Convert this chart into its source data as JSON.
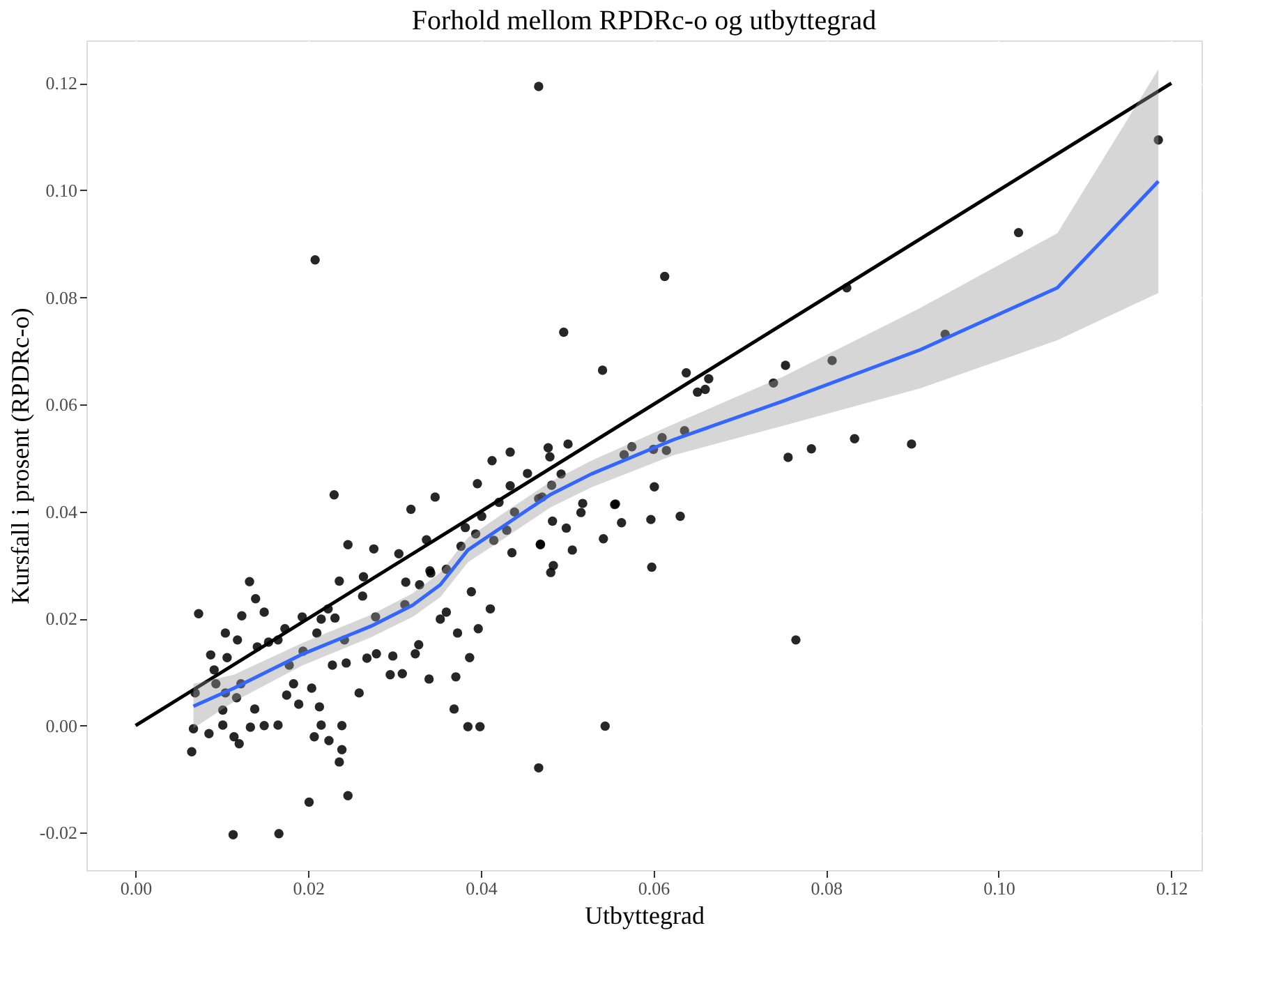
{
  "chart_data": {
    "type": "scatter",
    "title": "Forhold mellom RPDRc-o og utbyttegrad",
    "xlabel": "Utbyttegrad",
    "ylabel": "Kursfall i prosent (RPDRc-o)",
    "xlim": [
      -0.0057,
      0.1235
    ],
    "ylim": [
      -0.027,
      0.128
    ],
    "xticks": [
      {
        "value": 0,
        "label": "0.00"
      },
      {
        "value": 0.02,
        "label": "0.02"
      },
      {
        "value": 0.04,
        "label": "0.04"
      },
      {
        "value": 0.06,
        "label": "0.06"
      },
      {
        "value": 0.08,
        "label": "0.08"
      },
      {
        "value": 0.1,
        "label": "0.10"
      },
      {
        "value": 0.12,
        "label": "0.12"
      }
    ],
    "yticks": [
      {
        "value": -0.02,
        "label": "-0.02"
      },
      {
        "value": 0,
        "label": "0.00"
      },
      {
        "value": 0.02,
        "label": "0.02"
      },
      {
        "value": 0.04,
        "label": "0.04"
      },
      {
        "value": 0.06,
        "label": "0.06"
      },
      {
        "value": 0.08,
        "label": "0.08"
      },
      {
        "value": 0.1,
        "label": "0.10"
      },
      {
        "value": 0.12,
        "label": "0.12"
      }
    ],
    "grid": true,
    "series": [
      {
        "marker": "circle",
        "color": "#000000",
        "x": [
          0.1185,
          0.1023,
          0.0938,
          0.0824,
          0.0807,
          0.0753,
          0.0739,
          0.0613,
          0.0496,
          0.0541,
          0.0638,
          0.0664,
          0.0651,
          0.066,
          0.0636,
          0.061,
          0.06,
          0.0615,
          0.0575,
          0.0566,
          0.0756,
          0.0783,
          0.0833,
          0.0899,
          0.0601,
          0.0555,
          0.0518,
          0.0516,
          0.0563,
          0.0597,
          0.0631,
          0.0542,
          0.0506,
          0.0598,
          0.0484,
          0.0481,
          0.0499,
          0.0469,
          0.0483,
          0.0482,
          0.0493,
          0.0501,
          0.0478,
          0.048,
          0.0471,
          0.0765,
          0.0544,
          0.0467,
          0.0467,
          0.023,
          0.0319,
          0.0347,
          0.0413,
          0.0434,
          0.0396,
          0.0434,
          0.0454,
          0.0246,
          0.0276,
          0.0305,
          0.0337,
          0.0382,
          0.0377,
          0.0394,
          0.0401,
          0.0421,
          0.0439,
          0.0467,
          0.0469,
          0.043,
          0.0415,
          0.0436,
          0.0556,
          0.0236,
          0.0264,
          0.0313,
          0.0341,
          0.036,
          0.0132,
          0.0139,
          0.0149,
          0.0073,
          0.0123,
          0.0104,
          0.0118,
          0.0087,
          0.0106,
          0.0091,
          0.0193,
          0.0263,
          0.0278,
          0.0165,
          0.0194,
          0.0223,
          0.0215,
          0.0231,
          0.0173,
          0.021,
          0.0154,
          0.0141,
          0.0242,
          0.0178,
          0.0228,
          0.0183,
          0.0204,
          0.0268,
          0.0279,
          0.0244,
          0.0298,
          0.0312,
          0.0329,
          0.0342,
          0.036,
          0.0353,
          0.0328,
          0.0324,
          0.0295,
          0.0309,
          0.034,
          0.0371,
          0.0387,
          0.0373,
          0.0397,
          0.0411,
          0.0389,
          0.0369,
          0.0385,
          0.0399,
          0.0259,
          0.0175,
          0.0189,
          0.0213,
          0.0215,
          0.0239,
          0.0207,
          0.0224,
          0.0239,
          0.0236,
          0.0246,
          0.0201,
          0.0113,
          0.0166,
          0.0065,
          0.0067,
          0.0085,
          0.0101,
          0.0114,
          0.012,
          0.0133,
          0.0149,
          0.0165,
          0.0101,
          0.0117,
          0.0138,
          0.0069,
          0.0104,
          0.0122,
          0.0093,
          0.0208
        ],
        "values": [
          0.1094,
          0.0921,
          0.0731,
          0.0818,
          0.0682,
          0.0673,
          0.064,
          0.0839,
          0.0735,
          0.0664,
          0.0659,
          0.0648,
          0.0623,
          0.0628,
          0.0551,
          0.0538,
          0.0516,
          0.0514,
          0.0521,
          0.0506,
          0.0501,
          0.0517,
          0.0536,
          0.0526,
          0.0446,
          0.0413,
          0.0415,
          0.0398,
          0.0379,
          0.0385,
          0.0391,
          0.0349,
          0.0328,
          0.0296,
          0.0299,
          0.0286,
          0.0369,
          0.0338,
          0.0382,
          0.0449,
          0.047,
          0.0526,
          0.0519,
          0.0502,
          0.0427,
          0.016,
          -0.0001,
          -0.0079,
          0.1194,
          0.0431,
          0.0404,
          0.0427,
          0.0495,
          0.0511,
          0.0452,
          0.0448,
          0.0471,
          0.0338,
          0.033,
          0.0321,
          0.0347,
          0.037,
          0.0335,
          0.0358,
          0.0391,
          0.0417,
          0.0399,
          0.0424,
          0.0339,
          0.0365,
          0.0346,
          0.0323,
          0.0414,
          0.027,
          0.0278,
          0.0268,
          0.0289,
          0.0292,
          0.0269,
          0.0237,
          0.0212,
          0.0209,
          0.0205,
          0.0173,
          0.016,
          0.0132,
          0.0127,
          0.0104,
          0.0203,
          0.0242,
          0.0203,
          0.016,
          0.0139,
          0.0218,
          0.0199,
          0.0201,
          0.0181,
          0.0173,
          0.0156,
          0.0147,
          0.016,
          0.0113,
          0.0113,
          0.0078,
          0.007,
          0.0126,
          0.0134,
          0.0117,
          0.013,
          0.0226,
          0.0263,
          0.0285,
          0.0212,
          0.0199,
          0.0151,
          0.0134,
          0.0095,
          0.0097,
          0.0087,
          0.0091,
          0.0127,
          0.0173,
          0.0181,
          0.0218,
          0.025,
          0.0031,
          -0.0002,
          -0.0002,
          0.0061,
          0.0057,
          0.004,
          0.0035,
          0.0001,
          0.0,
          -0.0021,
          -0.0028,
          -0.0045,
          -0.0068,
          -0.0131,
          -0.0143,
          -0.0204,
          -0.0202,
          -0.0049,
          -0.0006,
          -0.0015,
          0.0001,
          -0.0021,
          -0.0034,
          -0.0003,
          0.0,
          0.0001,
          0.0029,
          0.0052,
          0.0031,
          0.0061,
          0.0061,
          0.0078,
          0.0078,
          0.087
        ]
      },
      {
        "type": "line",
        "color": "#000000",
        "x": [
          0,
          0.12
        ],
        "values": [
          0,
          0.12
        ]
      },
      {
        "type": "line",
        "color": "#3366ff",
        "x": [
          0.0067,
          0.0114,
          0.0194,
          0.0273,
          0.0321,
          0.0353,
          0.0385,
          0.0432,
          0.048,
          0.0528,
          0.0623,
          0.075,
          0.0909,
          0.1068,
          0.1185
        ],
        "values": [
          0.0036,
          0.007,
          0.0134,
          0.0186,
          0.0225,
          0.0263,
          0.0328,
          0.0379,
          0.0431,
          0.047,
          0.0534,
          0.0606,
          0.0702,
          0.0818,
          0.1017
        ],
        "lower": [
          -0.0005,
          0.0045,
          0.0113,
          0.0165,
          0.0203,
          0.024,
          0.0305,
          0.0355,
          0.0407,
          0.0445,
          0.0505,
          0.056,
          0.063,
          0.072,
          0.0808
        ],
        "upper": [
          0.0078,
          0.0095,
          0.0155,
          0.0207,
          0.0247,
          0.0286,
          0.0351,
          0.0403,
          0.0455,
          0.0495,
          0.0563,
          0.0652,
          0.078,
          0.092,
          0.1226
        ]
      }
    ]
  }
}
